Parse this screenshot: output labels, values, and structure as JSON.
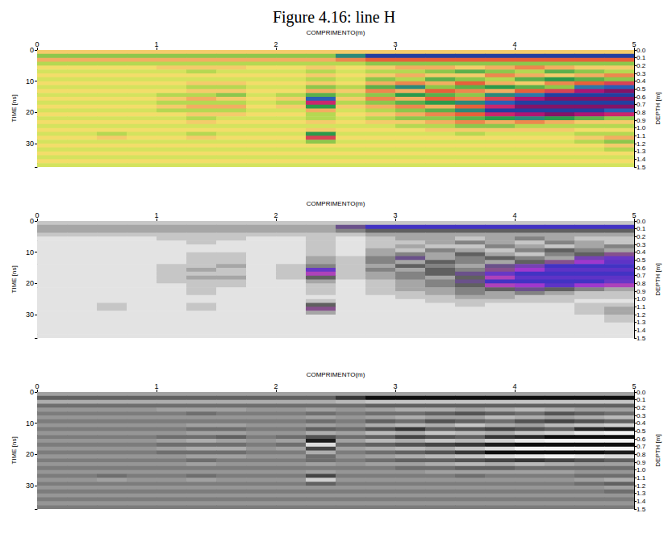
{
  "title": "Figure 4.16: line H",
  "radargram": {
    "x_edges": [
      0,
      0.25,
      0.5,
      0.75,
      1,
      1.25,
      1.5,
      1.75,
      2,
      2.25,
      2.5,
      2.75,
      3,
      3.25,
      3.5,
      3.75,
      4,
      4.25,
      4.5,
      4.75,
      5
    ],
    "t_edges": [
      0,
      1.25,
      2.5,
      3.75,
      5,
      6.25,
      7.5,
      8.75,
      10,
      11.25,
      12.5,
      13.75,
      15,
      16.25,
      17.5,
      18.75,
      20,
      21.25,
      22.5,
      23.75,
      25,
      26.25,
      27.5,
      28.75,
      30,
      31.25,
      32.5,
      33.75,
      35,
      36.25,
      37.5
    ],
    "cells": [
      [
        2,
        2,
        2,
        2,
        2,
        2,
        2,
        2,
        2,
        2,
        2,
        2,
        2,
        2,
        2,
        2,
        2,
        2,
        2,
        2
      ],
      [
        -3,
        -3,
        -3,
        -3,
        -3,
        -3,
        -3,
        -3,
        -3,
        -3,
        -6,
        -9,
        -9,
        -9,
        -9,
        -9,
        -9,
        -9,
        -9,
        -9
      ],
      [
        3,
        3,
        3,
        3,
        3,
        3,
        3,
        3,
        3,
        3,
        4,
        5,
        5,
        5,
        5,
        5,
        5,
        5,
        5,
        5
      ],
      [
        -2,
        -2,
        -2,
        -2,
        -2,
        -2,
        -2,
        -2,
        -2,
        -2,
        -2,
        -3,
        -3,
        -3,
        -3,
        -3,
        -3,
        -3,
        -3,
        -3
      ],
      [
        1,
        1,
        1,
        1,
        2,
        2,
        2,
        1,
        1,
        2,
        1,
        2,
        3,
        3,
        2,
        3,
        4,
        3,
        2,
        2
      ],
      [
        -1,
        -1,
        -1,
        -1,
        -1,
        -2,
        -1,
        -1,
        -1,
        -2,
        -1,
        -2,
        -2,
        -3,
        -4,
        -3,
        -2,
        -4,
        -3,
        -2
      ],
      [
        1,
        1,
        1,
        1,
        1,
        1,
        1,
        1,
        1,
        2,
        1,
        2,
        3,
        2,
        2,
        4,
        3,
        2,
        3,
        4
      ],
      [
        -1,
        -1,
        -1,
        -1,
        -1,
        -1,
        -1,
        -1,
        -1,
        -2,
        -1,
        -3,
        -2,
        -4,
        -3,
        -2,
        -4,
        -5,
        -4,
        -3
      ],
      [
        1,
        1,
        1,
        1,
        1,
        2,
        2,
        1,
        1,
        2,
        1,
        3,
        4,
        3,
        5,
        3,
        2,
        4,
        5,
        6
      ],
      [
        -1,
        -1,
        -1,
        -1,
        -1,
        -2,
        -2,
        -1,
        -1,
        -3,
        -2,
        -4,
        -6,
        -3,
        -4,
        -5,
        -4,
        -3,
        -7,
        -8
      ],
      [
        1,
        1,
        1,
        1,
        1,
        2,
        2,
        1,
        1,
        3,
        2,
        4,
        3,
        5,
        4,
        3,
        5,
        6,
        8,
        9
      ],
      [
        -1,
        -1,
        -1,
        -1,
        -2,
        -2,
        -3,
        -1,
        -2,
        -4,
        -2,
        -3,
        -5,
        -4,
        -3,
        -6,
        -7,
        -9,
        -9,
        -9
      ],
      [
        1,
        1,
        1,
        1,
        2,
        3,
        2,
        1,
        2,
        -8,
        2,
        4,
        3,
        5,
        4,
        6,
        8,
        9,
        9,
        9
      ],
      [
        -1,
        -1,
        -1,
        -1,
        -2,
        -2,
        -2,
        -1,
        -2,
        7,
        -2,
        -3,
        -4,
        -5,
        -6,
        -8,
        -9,
        -9,
        -9,
        -9
      ],
      [
        1,
        1,
        1,
        1,
        2,
        3,
        3,
        1,
        2,
        -5,
        2,
        3,
        4,
        3,
        5,
        7,
        9,
        9,
        9,
        9
      ],
      [
        -1,
        -1,
        -1,
        -1,
        -2,
        -2,
        -2,
        -1,
        -1,
        3,
        -1,
        -2,
        -3,
        -4,
        -6,
        -9,
        -9,
        -9,
        -9,
        -8
      ],
      [
        1,
        1,
        1,
        1,
        1,
        2,
        2,
        1,
        1,
        -2,
        1,
        2,
        3,
        4,
        5,
        7,
        8,
        9,
        8,
        7
      ],
      [
        -1,
        -1,
        -1,
        -1,
        -1,
        -2,
        -1,
        -1,
        -1,
        -2,
        -1,
        -2,
        -3,
        -3,
        -4,
        -5,
        -6,
        -5,
        -4,
        -3
      ],
      [
        1,
        1,
        1,
        1,
        1,
        2,
        1,
        1,
        1,
        2,
        1,
        2,
        2,
        3,
        4,
        3,
        4,
        3,
        2,
        2
      ],
      [
        -1,
        -1,
        -1,
        -1,
        -1,
        -1,
        -1,
        -1,
        -1,
        -1,
        -1,
        -1,
        -2,
        -2,
        -3,
        -3,
        -2,
        -2,
        -2,
        -2
      ],
      [
        1,
        1,
        1,
        1,
        1,
        1,
        1,
        1,
        1,
        2,
        1,
        1,
        1,
        2,
        2,
        2,
        2,
        2,
        1,
        1
      ],
      [
        -1,
        -1,
        -2,
        -1,
        -1,
        -2,
        -1,
        -1,
        -1,
        -5,
        -1,
        -1,
        -1,
        -1,
        -2,
        -1,
        -1,
        -1,
        -2,
        -2
      ],
      [
        1,
        1,
        2,
        1,
        1,
        2,
        1,
        1,
        1,
        6,
        1,
        1,
        1,
        1,
        1,
        1,
        1,
        1,
        2,
        3
      ],
      [
        -1,
        -1,
        -1,
        -1,
        -1,
        -1,
        -1,
        -1,
        -1,
        -3,
        -1,
        -1,
        -1,
        -1,
        -1,
        -1,
        -1,
        -1,
        -2,
        -3
      ],
      [
        1,
        1,
        1,
        1,
        1,
        1,
        1,
        1,
        1,
        1,
        1,
        1,
        1,
        1,
        1,
        1,
        1,
        1,
        1,
        2
      ],
      [
        -1,
        -1,
        -1,
        -1,
        -1,
        -1,
        -1,
        -1,
        -1,
        -1,
        -1,
        -1,
        -1,
        -1,
        -1,
        -1,
        -1,
        -1,
        -1,
        -2
      ],
      [
        1,
        1,
        1,
        1,
        1,
        1,
        1,
        1,
        1,
        1,
        1,
        1,
        1,
        1,
        1,
        1,
        1,
        1,
        1,
        1
      ],
      [
        -1,
        -1,
        -1,
        -1,
        -1,
        -1,
        -1,
        -1,
        -1,
        -1,
        -1,
        -1,
        -1,
        -1,
        -1,
        -1,
        -1,
        -1,
        -1,
        -1
      ],
      [
        1,
        1,
        1,
        1,
        1,
        1,
        1,
        1,
        1,
        1,
        1,
        1,
        1,
        1,
        1,
        1,
        1,
        1,
        1,
        1
      ],
      [
        -1,
        -1,
        -1,
        -1,
        -1,
        -1,
        -1,
        -1,
        -1,
        -1,
        -1,
        -1,
        -1,
        -1,
        -1,
        -1,
        -1,
        -1,
        -1,
        -1
      ]
    ]
  },
  "chart_data": [
    {
      "type": "heatmap",
      "xlabel": "COMPRIMENTO(m)",
      "ylabel": "TIME [ns]",
      "y2label": "DEPTH [m]",
      "xlim": [
        0,
        5
      ],
      "xticks": [
        0,
        1,
        2,
        3,
        4,
        5
      ],
      "ylim": [
        0,
        37.5
      ],
      "yticks": [
        0,
        10,
        20,
        30
      ],
      "y2lim": [
        0,
        1.5
      ],
      "y2ticks": [
        {
          "value": 0,
          "label": "0.0"
        },
        0.1,
        0.2,
        0.3,
        0.4,
        0.5,
        0.6,
        0.7,
        0.8,
        0.9,
        {
          "value": 1,
          "label": "1.0"
        },
        1.1,
        1.2,
        1.3,
        1.4,
        1.5
      ],
      "color_range": [
        -10,
        10
      ],
      "colormap": [
        "#1b1f8a",
        "#2e6fc0",
        "#2b9a4a",
        "#a6d24c",
        "#f2ef6a",
        "#f5c26b",
        "#e8603a",
        "#c2187a",
        "#5a0f5a"
      ],
      "grid": false
    },
    {
      "type": "heatmap",
      "xlabel": "COMPRIMENTO(m)",
      "ylabel": "TIME [ns]",
      "y2label": "DEPTH [m]",
      "xlim": [
        0,
        5
      ],
      "xticks": [
        0,
        1,
        2,
        3,
        4,
        5
      ],
      "ylim": [
        0,
        37.5
      ],
      "yticks": [
        0,
        10,
        20,
        30
      ],
      "y2lim": [
        0,
        1.5
      ],
      "y2ticks": [
        {
          "value": 0,
          "label": "0.0"
        },
        0.1,
        0.2,
        0.3,
        0.4,
        0.5,
        0.6,
        0.7,
        0.8,
        0.9,
        {
          "value": 1,
          "label": "1.0"
        },
        1.1,
        1.2,
        1.3,
        1.4,
        1.5
      ],
      "color_range": [
        -10,
        10
      ],
      "colormap": [
        "#1c2fbf",
        "#7a3ac8",
        "#606060",
        "#b8b8b8",
        "#ffffff",
        "#b8b8b8",
        "#606060",
        "#c03ad0",
        "#1c2fbf"
      ],
      "grid": false
    },
    {
      "type": "heatmap",
      "xlabel": "COMPRIMENTO(m)",
      "ylabel": "TIME [ns]",
      "y2label": "DEPTH [m]",
      "xlim": [
        0,
        5
      ],
      "xticks": [
        0,
        1,
        2,
        3,
        4,
        5
      ],
      "ylim": [
        0,
        37.5
      ],
      "yticks": [
        0,
        10,
        20,
        30
      ],
      "y2lim": [
        0,
        1.5
      ],
      "y2ticks": [
        {
          "value": 0,
          "label": "0.0"
        },
        0.1,
        0.2,
        0.3,
        0.4,
        0.5,
        0.6,
        0.7,
        0.8,
        0.9,
        {
          "value": 1,
          "label": "1.0"
        },
        1.1,
        1.2,
        1.3,
        1.4,
        1.5
      ],
      "color_range": [
        -10,
        10
      ],
      "colormap": [
        "#000000",
        "#8a8a8a",
        "#ffffff"
      ],
      "grid": false
    }
  ]
}
